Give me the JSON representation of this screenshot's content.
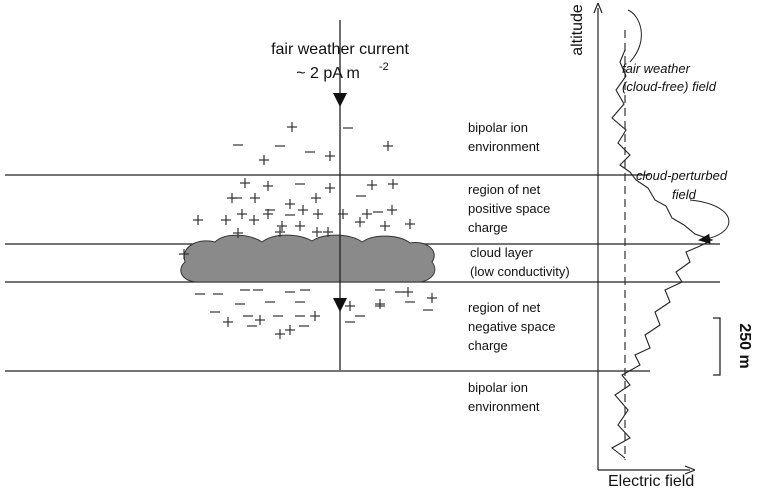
{
  "title": {
    "line1": "fair weather current",
    "line2": "~ 2 pA m",
    "exponent": "-2"
  },
  "regions": [
    {
      "lines": [
        "bipolar ion",
        "environment"
      ]
    },
    {
      "lines": [
        "region of net",
        "positive space",
        "charge"
      ]
    },
    {
      "lines": [
        "cloud layer",
        "(low conductivity)"
      ]
    },
    {
      "lines": [
        "region of net",
        "negative space",
        "charge"
      ]
    },
    {
      "lines": [
        "bipolar ion",
        "environment"
      ]
    }
  ],
  "axes": {
    "y_label": "altitude",
    "x_label": "Electric field"
  },
  "scale_bar": "250 m",
  "annotations": {
    "fair_weather_field": [
      "fair weather",
      "(cloud-free) field"
    ],
    "cloud_perturbed_field": [
      "cloud-perturbed",
      "field"
    ]
  }
}
